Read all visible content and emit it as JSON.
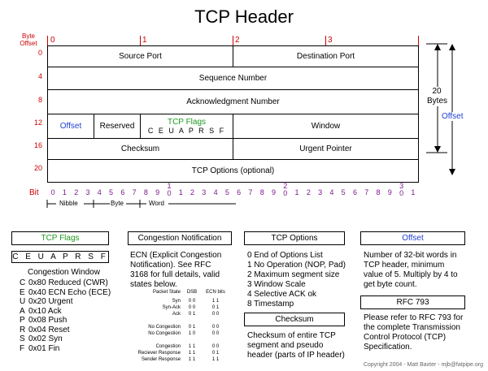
{
  "title": "TCP Header",
  "offset_label": [
    "Byte",
    "Offset"
  ],
  "bit_ticks": [
    "0",
    "1",
    "2",
    "3"
  ],
  "row_offsets": [
    "0",
    "4",
    "8",
    "12",
    "16",
    "20"
  ],
  "fields": {
    "source_port": "Source Port",
    "destination_port": "Destination Port",
    "sequence_number": "Sequence Number",
    "ack_number": "Acknowledgment Number",
    "offset": "Offset",
    "reserved": "Reserved",
    "tcp_flags": "TCP Flags",
    "flag_letters": "C E U A P R S F",
    "window": "Window",
    "checksum": "Checksum",
    "urgent_pointer": "Urgent Pointer",
    "tcp_options": "TCP Options (optional)"
  },
  "right_annot": {
    "size": [
      "20",
      "Bytes"
    ],
    "offset": "Offset"
  },
  "bit_row_label": "Bit",
  "bit_numbers": [
    "0",
    "1",
    "2",
    "3",
    "4",
    "5",
    "6",
    "7",
    "8",
    "9",
    "1\n0",
    "1",
    "2",
    "3",
    "4",
    "5",
    "6",
    "7",
    "8",
    "9",
    "2\n0",
    "1",
    "2",
    "3",
    "4",
    "5",
    "6",
    "7",
    "8",
    "9",
    "3\n0",
    "1"
  ],
  "scale_labels": {
    "nibble": "Nibble",
    "byte": "Byte",
    "word": "Word"
  },
  "panels": {
    "tcp_flags": {
      "header": "TCP Flags",
      "flags_box": "C E U A P R S F",
      "subtitle": "Congestion Window",
      "lines": [
        {
          "k": "C",
          "v": "0x80 Reduced (CWR)"
        },
        {
          "k": "E",
          "v": "0x40 ECN Echo (ECE)"
        },
        {
          "k": "U",
          "v": "0x20 Urgent"
        },
        {
          "k": "A",
          "v": "0x10 Ack"
        },
        {
          "k": "P",
          "v": "0x08 Push"
        },
        {
          "k": "R",
          "v": "0x04 Reset"
        },
        {
          "k": "S",
          "v": "0x02 Syn"
        },
        {
          "k": "F",
          "v": "0x01 Fin"
        }
      ]
    },
    "congestion": {
      "header": "Congestion Notification",
      "text": [
        "ECN (Explicit Congestion",
        "Notification).  See RFC",
        "3168 for full details, valid",
        "states below."
      ],
      "table_head": {
        "state": "Packet State",
        "dsb": "DSB",
        "ecn": "ECN bits"
      },
      "rows": [
        {
          "state": "Syn",
          "dsb": "0 0",
          "ecn": "1 1"
        },
        {
          "state": "Syn-Ack",
          "dsb": "0 0",
          "ecn": "0 1"
        },
        {
          "state": "Ack",
          "dsb": "0 1",
          "ecn": "0 0"
        },
        {
          "state": "",
          "dsb": "",
          "ecn": ""
        },
        {
          "state": "No Congestion",
          "dsb": "0 1",
          "ecn": "0 0"
        },
        {
          "state": "No Congestion",
          "dsb": "1 0",
          "ecn": "0 0"
        },
        {
          "state": "",
          "dsb": "",
          "ecn": ""
        },
        {
          "state": "Congestion",
          "dsb": "1 1",
          "ecn": "0 0"
        },
        {
          "state": "Reciever Response",
          "dsb": "1 1",
          "ecn": "0 1"
        },
        {
          "state": "Sender Response",
          "dsb": "1 1",
          "ecn": "1 1"
        }
      ]
    },
    "tcp_options": {
      "header": "TCP Options",
      "lines": [
        "0 End of Options List",
        "1 No Operation (NOP, Pad)",
        "2 Maximum segment size",
        "3 Window Scale",
        "4 Selective ACK ok",
        "8 Timestamp"
      ]
    },
    "checksum": {
      "header": "Checksum",
      "text": [
        "Checksum of entire TCP",
        "segment and pseudo",
        "header (parts of IP header)"
      ]
    },
    "offset": {
      "header": "Offset",
      "text": [
        "Number of 32-bit words in",
        "TCP header, minimum",
        "value of 5.  Multiply by 4 to",
        "get byte count."
      ]
    },
    "rfc": {
      "header": "RFC 793",
      "text": [
        "Please refer to RFC 793 for",
        "the complete Transmission",
        "Control Protocol (TCP)",
        "Specification."
      ]
    }
  },
  "footer": "Copyright 2004 - Matt Baxter - mjb@fatpipe.org",
  "colors": {
    "offset_red": "#cc0000",
    "bit_purple": "#7a1a8a",
    "blue": "#1f3fcf",
    "green": "#1f9a1f"
  }
}
